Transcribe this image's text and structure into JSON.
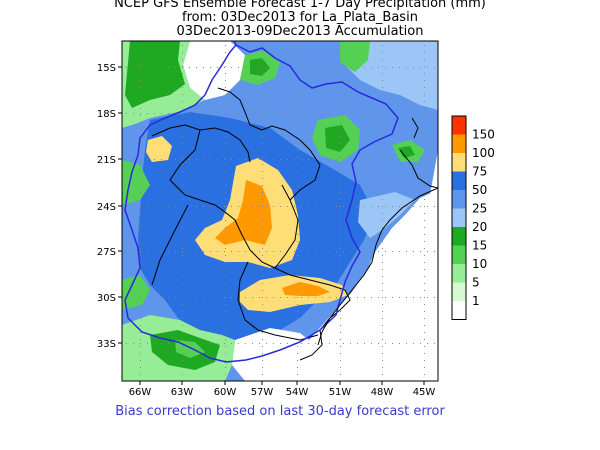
{
  "title": {
    "line1": "NCEP GFS Ensemble Forecast 1-7 Day Precipitation (mm)",
    "line2": "from: 03Dec2013   for La_Plata_Basin",
    "line3": "03Dec2013-09Dec2013 Accumulation"
  },
  "map": {
    "lat_ticks": [
      "15S",
      "18S",
      "21S",
      "24S",
      "27S",
      "30S",
      "33S"
    ],
    "lon_ticks": [
      "66W",
      "63W",
      "60W",
      "57W",
      "54W",
      "51W",
      "48W",
      "45W"
    ],
    "background_color": "#ffffff",
    "basin_outline_color": "#2a2adc",
    "border_color": "#000000"
  },
  "legend": {
    "entries": [
      {
        "label": "150",
        "color": "#ff3300"
      },
      {
        "label": "100",
        "color": "#ff9900"
      },
      {
        "label": "75",
        "color": "#ffdd77"
      },
      {
        "label": "50",
        "color": "#2a70e0"
      },
      {
        "label": "25",
        "color": "#5f96ec"
      },
      {
        "label": "20",
        "color": "#9cc6f6"
      },
      {
        "label": "15",
        "color": "#1fa822"
      },
      {
        "label": "10",
        "color": "#54d154"
      },
      {
        "label": "5",
        "color": "#97ec97"
      },
      {
        "label": "1",
        "color": "#d7f9d2"
      }
    ],
    "below_color": "#ffffff"
  },
  "footer": {
    "note": "Bias correction based on last 30-day forecast error"
  }
}
